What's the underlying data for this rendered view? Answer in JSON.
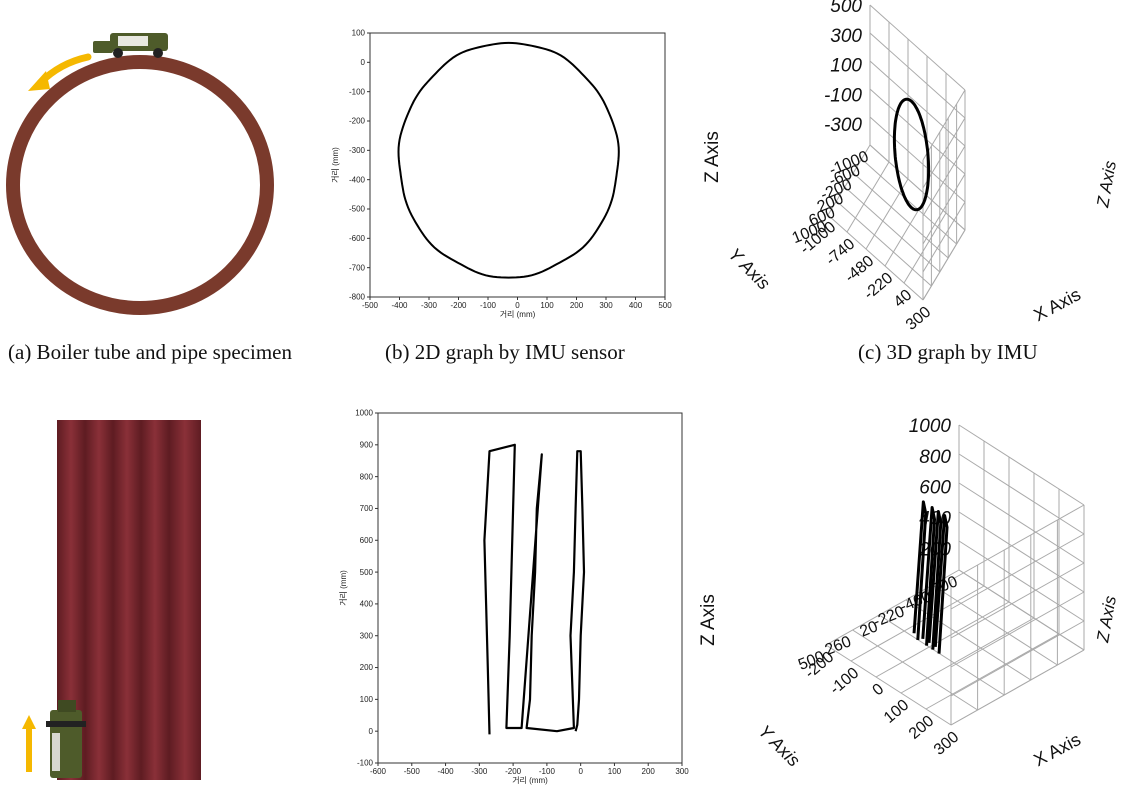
{
  "captions": {
    "a": "(a) Boiler tube and pipe specimen",
    "b": "(b) 2D graph by IMU sensor",
    "c": "(c) 3D graph by IMU"
  },
  "colors": {
    "tube": "#7a3a2c",
    "wall": "#7b2a2f",
    "wall_stripe": "#5e1c22",
    "robot": "#4e5b2a",
    "arrow": "#f5b800",
    "trace": "#000000"
  },
  "chart_data": [
    {
      "id": "top-2d",
      "type": "line",
      "title": "",
      "xlabel": "거리 (mm)",
      "ylabel": "거리 (mm)",
      "xlim": [
        -500,
        500
      ],
      "ylim": [
        -800,
        100
      ],
      "xticks": [
        -500,
        -400,
        -300,
        -200,
        -100,
        0,
        100,
        200,
        300,
        400,
        500
      ],
      "yticks": [
        100,
        0,
        -100,
        -200,
        -300,
        -400,
        -500,
        -600,
        -700,
        -800
      ],
      "grid": false,
      "series": [
        {
          "shape": "circle",
          "center": [
            -30,
            -333
          ],
          "radius_x": 372,
          "radius_y": 400
        }
      ]
    },
    {
      "id": "top-3d",
      "type": "line",
      "title": "",
      "xlabel": "X Axis",
      "ylabel": "Y Axis",
      "zlabel": "Z Axis",
      "xticks": [
        "-1000",
        "-740",
        "-480",
        "-220",
        "40",
        "300"
      ],
      "yticks": [
        "-1000",
        "-600",
        "-200",
        "200",
        "600",
        "1000"
      ],
      "zticks": [
        "500",
        "300",
        "100",
        "-100",
        "-300"
      ],
      "grid": true
    },
    {
      "id": "bottom-2d",
      "type": "line",
      "title": "",
      "xlabel": "거리 (mm)",
      "ylabel": "거리 (mm)",
      "xlim": [
        -600,
        300
      ],
      "ylim": [
        -100,
        1000
      ],
      "xticks": [
        -600,
        -500,
        -400,
        -300,
        -200,
        -100,
        0,
        100,
        200,
        300
      ],
      "yticks": [
        1000,
        900,
        800,
        700,
        600,
        500,
        400,
        300,
        200,
        100,
        0,
        -100
      ],
      "grid": false,
      "series": [
        {
          "x": [
            -270,
            -275,
            -280,
            -285,
            -270,
            -195,
            -200,
            -205,
            -210,
            -220,
            -175,
            -115,
            -130,
            -135,
            -145,
            -150,
            -160,
            -70,
            -20,
            -30,
            -20,
            -15,
            -10,
            0,
            5,
            10,
            0,
            -5,
            -10,
            -15
          ],
          "y": [
            -10,
            200,
            400,
            600,
            880,
            900,
            700,
            500,
            300,
            10,
            10,
            870,
            700,
            500,
            300,
            100,
            10,
            0,
            10,
            300,
            500,
            700,
            880,
            880,
            700,
            500,
            300,
            100,
            20,
            0
          ]
        }
      ]
    },
    {
      "id": "bottom-3d",
      "type": "line",
      "title": "",
      "xlabel": "X Axis",
      "ylabel": "Y Axis",
      "zlabel": "Z Axis",
      "xticks": [
        "-200",
        "-100",
        "0",
        "100",
        "200",
        "300"
      ],
      "yticks": [
        "-700",
        "-460",
        "-220",
        "20",
        "260",
        "500"
      ],
      "zticks": [
        "1000",
        "800",
        "600",
        "400",
        "200"
      ],
      "grid": true
    }
  ]
}
